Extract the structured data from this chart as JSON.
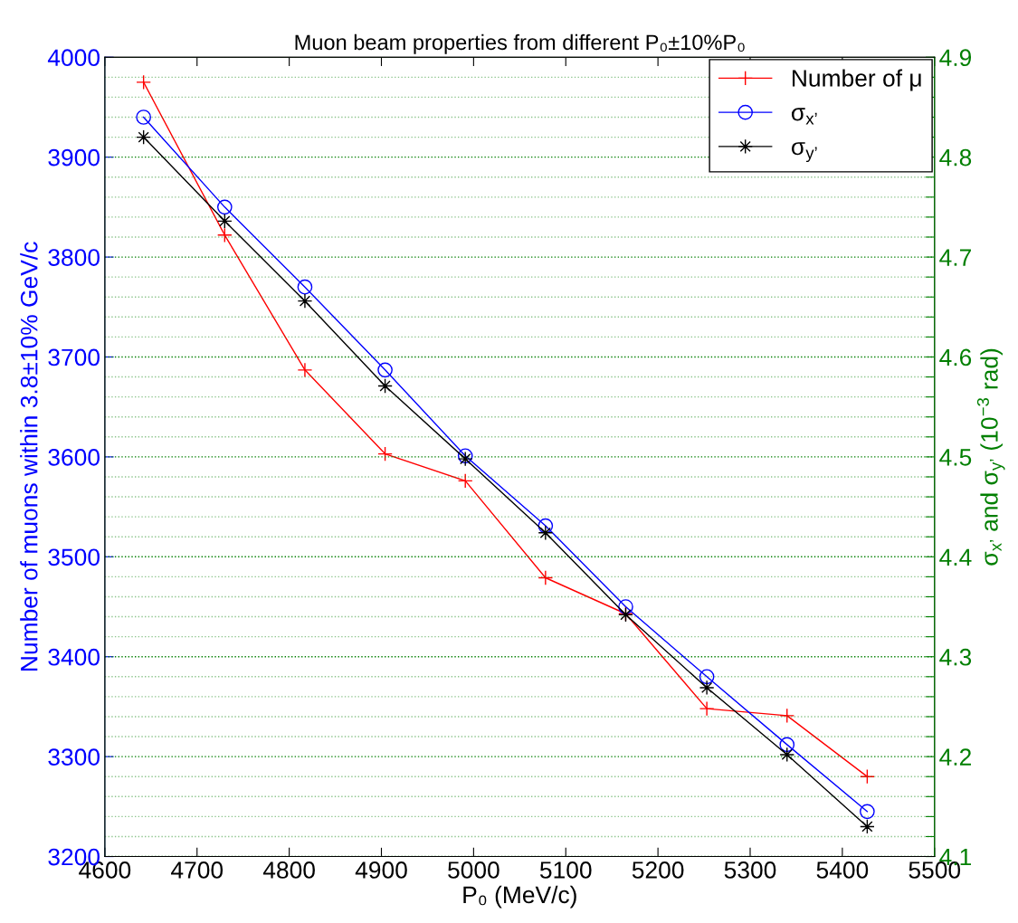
{
  "chart_data": {
    "type": "line",
    "title": "Muon beam properties from different P₀±10%P₀",
    "xlabel": "P₀ (MeV/c)",
    "ylabel": "Number of muons within 3.8±10% GeV/c",
    "y2label": "σ$_{x’}$ and σ$_{y’}$ (10$^{−3}$ rad)",
    "x": [
      4642,
      4730,
      4817,
      4904,
      4991,
      5078,
      5165,
      5253,
      5340,
      5427
    ],
    "series": [
      {
        "name": "Number of μ",
        "color": "#ff0000",
        "marker": "cross",
        "values": [
          3975,
          3822,
          3687,
          3603,
          3576,
          3479,
          3443,
          3348,
          3341,
          3280
        ]
      },
      {
        "name": "σ$_{x’}$",
        "color": "#0000ff",
        "marker": "circle",
        "axis": "y2",
        "values": [
          4.84,
          4.75,
          4.67,
          4.587,
          4.501,
          4.431,
          4.35,
          4.28,
          4.212,
          4.145
        ]
      },
      {
        "name": "σ$_{y’}$",
        "color": "#000000",
        "marker": "star",
        "axis": "y2",
        "values": [
          4.82,
          4.736,
          4.656,
          4.571,
          4.498,
          4.424,
          4.342,
          4.269,
          4.202,
          4.13
        ]
      }
    ],
    "xlim": [
      4600,
      5500
    ],
    "xticks": [
      4600,
      4700,
      4800,
      4900,
      5000,
      5100,
      5200,
      5300,
      5400,
      5500
    ],
    "ylim": [
      3200,
      4000
    ],
    "yticks": [
      3200,
      3300,
      3400,
      3500,
      3600,
      3700,
      3800,
      3900,
      4000
    ],
    "y2lim": [
      4.1,
      4.9
    ],
    "y2ticks": [
      4.1,
      {
        "value": 4.12,
        "label": null
      },
      {
        "value": 4.14,
        "label": null
      },
      {
        "value": 4.16,
        "label": null
      },
      {
        "value": 4.18,
        "label": null
      },
      4.2,
      {
        "value": 4.22,
        "label": null
      },
      {
        "value": 4.24,
        "label": null
      },
      {
        "value": 4.26,
        "label": null
      },
      {
        "value": 4.28,
        "label": null
      },
      4.3,
      {
        "value": 4.32,
        "label": null
      },
      {
        "value": 4.34,
        "label": null
      },
      {
        "value": 4.36,
        "label": null
      },
      {
        "value": 4.38,
        "label": null
      },
      4.4,
      {
        "value": 4.42,
        "label": null
      },
      {
        "value": 4.44,
        "label": null
      },
      {
        "value": 4.46,
        "label": null
      },
      {
        "value": 4.48,
        "label": null
      },
      4.5,
      {
        "value": 4.52,
        "label": null
      },
      {
        "value": 4.54,
        "label": null
      },
      {
        "value": 4.56,
        "label": null
      },
      {
        "value": 4.58,
        "label": null
      },
      4.6,
      {
        "value": 4.62,
        "label": null
      },
      {
        "value": 4.64,
        "label": null
      },
      {
        "value": 4.66,
        "label": null
      },
      {
        "value": 4.68,
        "label": null
      },
      4.7,
      {
        "value": 4.72,
        "label": null
      },
      {
        "value": 4.74,
        "label": null
      },
      {
        "value": 4.76,
        "label": null
      },
      {
        "value": 4.78,
        "label": null
      },
      4.8,
      {
        "value": 4.82,
        "label": null
      },
      {
        "value": 4.84,
        "label": null
      },
      {
        "value": 4.86,
        "label": null
      },
      {
        "value": 4.88,
        "label": null
      },
      4.9
    ],
    "grid": "y2",
    "legend": "top right",
    "line_style": "solid"
  }
}
